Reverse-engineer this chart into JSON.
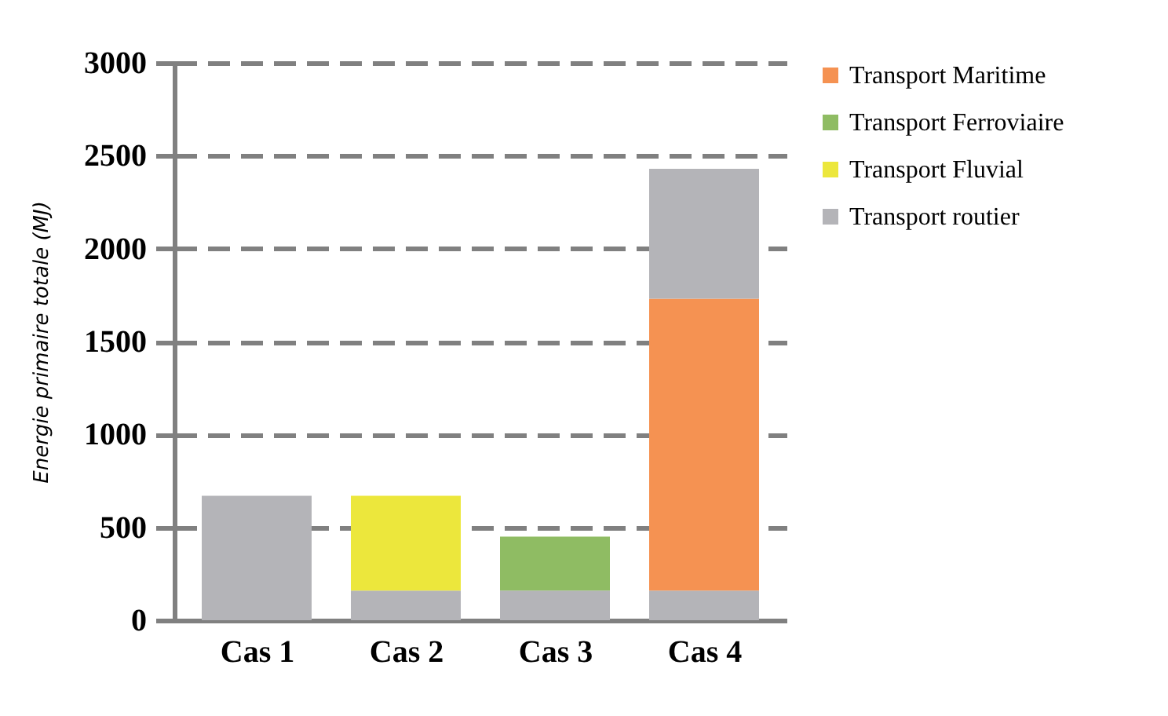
{
  "chart_data": {
    "type": "bar",
    "stacked": true,
    "ylabel": "Energie primaire totale (MJ)",
    "categories": [
      "Cas 1",
      "Cas 2",
      "Cas 3",
      "Cas 4"
    ],
    "series": [
      {
        "name": "Transport routier",
        "color": "#b4b4b8",
        "values": [
          670,
          160,
          160,
          160
        ]
      },
      {
        "name": "Transport Fluvial",
        "color": "#ece73c",
        "values": [
          0,
          510,
          0,
          0
        ]
      },
      {
        "name": "Transport Ferroviaire",
        "color": "#8fbc63",
        "values": [
          0,
          0,
          290,
          0
        ]
      },
      {
        "name": "Transport Maritime",
        "color": "#f59252",
        "values": [
          0,
          0,
          0,
          1570
        ]
      },
      {
        "color": "#b4b4b8",
        "values": [
          0,
          0,
          0,
          700
        ]
      }
    ],
    "ylim": [
      0,
      3000
    ],
    "yticks": [
      0,
      500,
      1000,
      1500,
      2000,
      2500,
      3000
    ],
    "grid": "y",
    "legend": "right"
  }
}
